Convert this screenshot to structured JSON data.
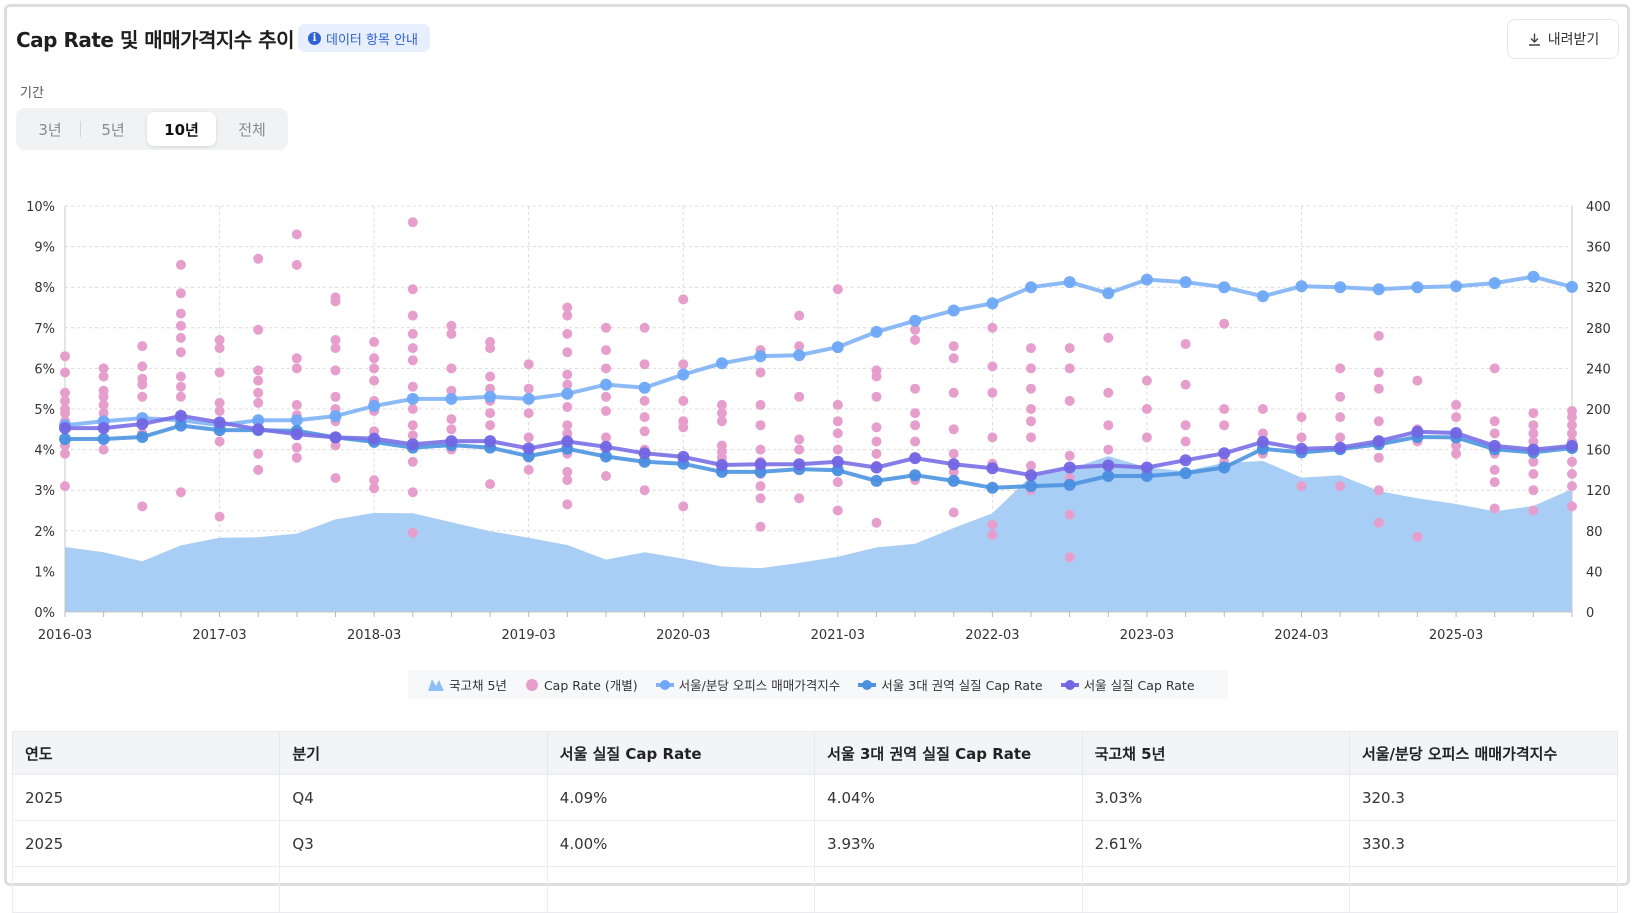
{
  "header": {
    "title": "Cap Rate 및 매매가격지수 추이",
    "info_badge": "데이터 항목 안내",
    "download_label": "내려받기"
  },
  "period": {
    "label": "기간",
    "options": [
      "3년",
      "5년",
      "10년",
      "전체"
    ],
    "selected": "10년"
  },
  "colors": {
    "bond_area": "#a7cdf5",
    "cap_rate_dots": "#e69fcd",
    "price_index": "#7fb2f6",
    "seoul3_cap": "#4d93e0",
    "seoul_cap": "#7a6fe6"
  },
  "chart_data": {
    "type": "line",
    "title": "Cap Rate 및 매매가격지수 추이",
    "x_start": "2016-03",
    "x_step": "quarter",
    "x_ticks": [
      "2016-03",
      "2017-03",
      "2018-03",
      "2019-03",
      "2020-03",
      "2021-03",
      "2022-03",
      "2023-03",
      "2024-03",
      "2025-03"
    ],
    "y_left": {
      "ticks": [
        "0%",
        "1%",
        "2%",
        "3%",
        "4%",
        "5%",
        "6%",
        "7%",
        "8%",
        "9%",
        "10%"
      ],
      "range": [
        0,
        10
      ]
    },
    "y_right": {
      "ticks": [
        "0",
        "40",
        "80",
        "120",
        "160",
        "200",
        "240",
        "280",
        "320",
        "360",
        "400"
      ],
      "range": [
        0,
        400
      ]
    },
    "grid": true,
    "legend_position": "bottom",
    "legend": [
      "국고채 5년",
      "Cap Rate (개별)",
      "서울/분당 오피스 매매가격지수",
      "서울 3대 권역 실질 Cap Rate",
      "서울 실질 Cap Rate"
    ],
    "series": [
      {
        "name": "국고채 5년",
        "kind": "area",
        "axis": "left",
        "values": [
          1.6,
          1.47,
          1.25,
          1.64,
          1.83,
          1.84,
          1.93,
          2.28,
          2.44,
          2.43,
          2.21,
          1.99,
          1.83,
          1.65,
          1.29,
          1.47,
          1.31,
          1.12,
          1.08,
          1.21,
          1.36,
          1.59,
          1.68,
          2.07,
          2.43,
          3.35,
          3.52,
          3.84,
          3.56,
          3.47,
          3.68,
          3.72,
          3.31,
          3.37,
          2.98,
          2.8,
          2.66,
          2.48,
          2.61,
          3.03
        ]
      },
      {
        "name": "서울/분당 오피스 매매가격지수",
        "kind": "line",
        "axis": "right",
        "values": [
          184,
          188,
          191,
          189,
          184,
          189,
          189,
          193,
          203,
          210,
          210,
          212,
          210,
          215,
          224,
          221,
          234,
          245,
          252,
          253,
          261,
          276,
          287,
          297,
          304,
          320,
          325,
          314,
          327.5,
          325,
          320,
          311,
          321,
          320,
          318,
          320,
          321,
          324,
          330.3,
          320.3
        ]
      },
      {
        "name": "서울 3대 권역 실질 Cap Rate",
        "kind": "line",
        "axis": "left",
        "values": [
          4.26,
          4.26,
          4.31,
          4.59,
          4.48,
          4.48,
          4.46,
          4.3,
          4.19,
          4.05,
          4.11,
          4.05,
          3.84,
          4.02,
          3.83,
          3.7,
          3.65,
          3.45,
          3.45,
          3.52,
          3.49,
          3.23,
          3.37,
          3.23,
          3.06,
          3.1,
          3.13,
          3.35,
          3.35,
          3.42,
          3.56,
          4.02,
          3.93,
          4.01,
          4.13,
          4.31,
          4.3,
          4.01,
          3.93,
          4.04
        ]
      },
      {
        "name": "서울 실질 Cap Rate",
        "kind": "line",
        "axis": "left",
        "values": [
          4.53,
          4.53,
          4.63,
          4.83,
          4.67,
          4.5,
          4.38,
          4.3,
          4.27,
          4.13,
          4.21,
          4.21,
          4.03,
          4.2,
          4.07,
          3.91,
          3.82,
          3.62,
          3.64,
          3.64,
          3.7,
          3.56,
          3.79,
          3.64,
          3.54,
          3.37,
          3.56,
          3.61,
          3.56,
          3.74,
          3.91,
          4.19,
          4.02,
          4.05,
          4.21,
          4.44,
          4.41,
          4.09,
          4.0,
          4.09
        ]
      }
    ],
    "scatter": {
      "name": "Cap Rate (개별)",
      "axis": "left",
      "by_quarter": [
        [
          6.3,
          5.9,
          5.4,
          5.2,
          5.0,
          4.9,
          4.7,
          4.1,
          3.9,
          3.1
        ],
        [
          6.0,
          5.8,
          5.45,
          5.3,
          5.1,
          4.9,
          4.7,
          4.0
        ],
        [
          6.55,
          6.05,
          5.75,
          5.6,
          5.3,
          4.4,
          2.6
        ],
        [
          8.55,
          7.85,
          7.35,
          7.05,
          6.75,
          6.4,
          5.8,
          5.55,
          5.3,
          4.8,
          2.95
        ],
        [
          6.7,
          6.5,
          5.9,
          5.15,
          4.95,
          4.2,
          2.35
        ],
        [
          8.7,
          6.95,
          5.95,
          5.7,
          5.4,
          5.15,
          4.7,
          3.9,
          3.5
        ],
        [
          9.3,
          8.55,
          6.25,
          6.0,
          5.1,
          4.85,
          4.05,
          3.8
        ],
        [
          7.75,
          7.65,
          6.7,
          6.5,
          5.95,
          5.3,
          5.0,
          4.7,
          4.1,
          3.3
        ],
        [
          6.65,
          6.25,
          6.0,
          5.7,
          5.2,
          4.95,
          4.45,
          3.25,
          3.05
        ],
        [
          9.6,
          7.95,
          7.3,
          6.85,
          6.5,
          6.2,
          5.55,
          5.0,
          4.6,
          4.35,
          3.7,
          2.95,
          1.95
        ],
        [
          7.05,
          6.85,
          6.0,
          5.45,
          4.75,
          4.5,
          4.0
        ],
        [
          6.65,
          6.5,
          5.8,
          5.5,
          5.2,
          4.9,
          4.6,
          3.15
        ],
        [
          6.1,
          5.5,
          4.9,
          4.3,
          3.8,
          3.5
        ],
        [
          7.5,
          7.3,
          6.85,
          6.4,
          5.85,
          5.6,
          5.05,
          4.6,
          4.4,
          3.9,
          3.45,
          3.25,
          2.65
        ],
        [
          7.0,
          6.45,
          6.0,
          5.3,
          4.95,
          4.3,
          3.35
        ],
        [
          7.0,
          6.1,
          5.2,
          4.8,
          4.45,
          4.0,
          3.0
        ],
        [
          7.7,
          6.1,
          5.2,
          4.7,
          4.55,
          2.6
        ],
        [
          5.1,
          4.9,
          4.7,
          4.1,
          3.95,
          3.8
        ],
        [
          6.45,
          5.9,
          5.1,
          4.6,
          4.0,
          3.7,
          3.4,
          3.1,
          2.8,
          2.1
        ],
        [
          7.3,
          6.55,
          5.3,
          4.25,
          4.0,
          3.6,
          2.8
        ],
        [
          7.95,
          6.5,
          5.1,
          4.7,
          4.4,
          4.0,
          3.6,
          3.2,
          2.5
        ],
        [
          5.95,
          5.8,
          5.3,
          4.55,
          4.2,
          3.9,
          3.6,
          2.2
        ],
        [
          6.95,
          6.7,
          5.5,
          4.9,
          4.6,
          4.2,
          3.8,
          3.25
        ],
        [
          6.55,
          6.25,
          5.4,
          4.5,
          3.9,
          3.45,
          2.45
        ],
        [
          7.0,
          6.05,
          5.4,
          4.3,
          3.65,
          2.15,
          1.9
        ],
        [
          6.5,
          6.0,
          5.5,
          5.0,
          4.7,
          4.3,
          3.6,
          3.0
        ],
        [
          6.5,
          6.0,
          5.2,
          3.85,
          3.3,
          2.4,
          1.35
        ],
        [
          6.75,
          5.4,
          4.6,
          4.0,
          3.35
        ],
        [
          5.7,
          5.0,
          4.3,
          3.4
        ],
        [
          6.6,
          5.6,
          4.6,
          4.2
        ],
        [
          7.1,
          5.0,
          4.6,
          3.7
        ],
        [
          5.0,
          4.4,
          3.9
        ],
        [
          4.8,
          4.3,
          3.1
        ],
        [
          6.0,
          5.3,
          4.8,
          4.3,
          3.1
        ],
        [
          6.8,
          5.9,
          5.5,
          4.7,
          4.2,
          3.8,
          3.0,
          2.2
        ],
        [
          5.7,
          4.5,
          4.2,
          1.85
        ],
        [
          5.1,
          4.8,
          4.1,
          3.9
        ],
        [
          6.0,
          4.7,
          4.4,
          3.9,
          3.5,
          3.2,
          2.55
        ],
        [
          4.9,
          4.6,
          4.4,
          4.2,
          3.9,
          3.7,
          3.4,
          3.0,
          2.5
        ],
        [
          4.95,
          4.8,
          4.6,
          4.4,
          4.2,
          3.7,
          3.4,
          3.1,
          2.6
        ]
      ]
    }
  },
  "table": {
    "columns": [
      "연도",
      "분기",
      "서울 실질 Cap Rate",
      "서울 3대 권역 실질 Cap Rate",
      "국고채 5년",
      "서울/분당 오피스 매매가격지수"
    ],
    "rows": [
      [
        "2025",
        "Q4",
        "4.09%",
        "4.04%",
        "3.03%",
        "320.3"
      ],
      [
        "2025",
        "Q3",
        "4.00%",
        "3.93%",
        "2.61%",
        "330.3"
      ],
      [
        "",
        "",
        "",
        "",
        "",
        ""
      ]
    ]
  }
}
